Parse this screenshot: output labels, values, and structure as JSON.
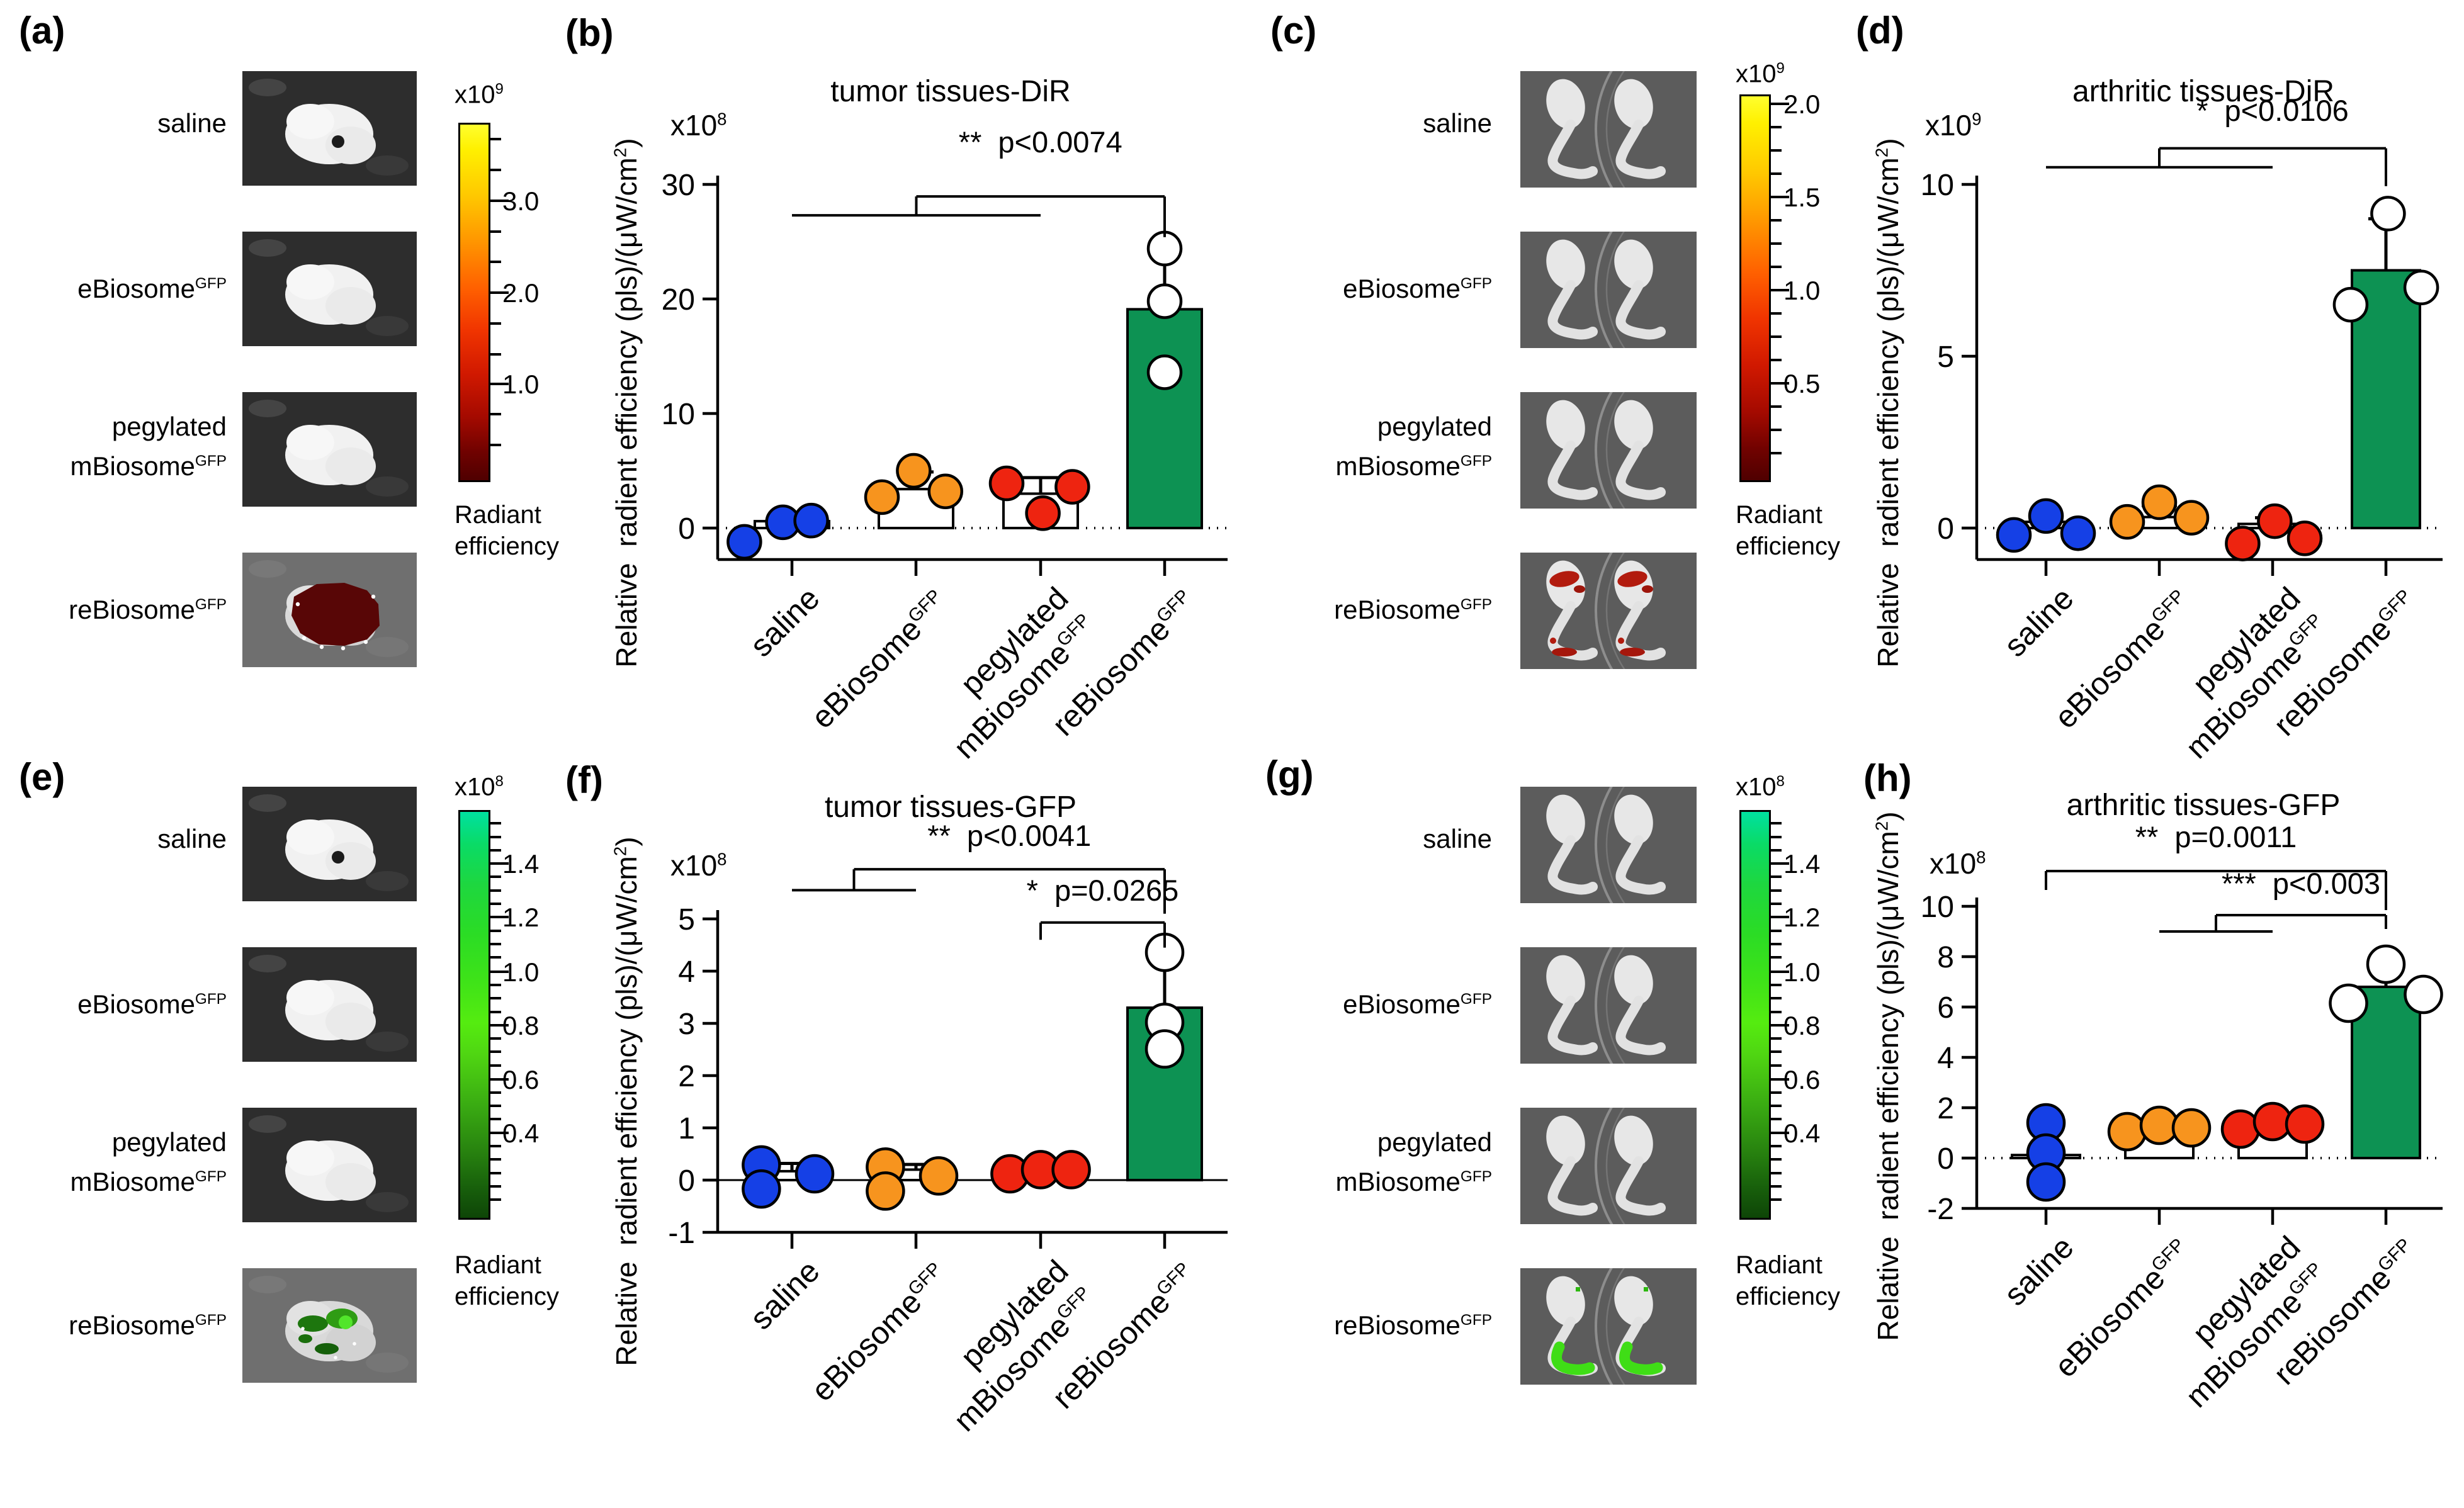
{
  "figure": {
    "background": "#ffffff"
  },
  "colors": {
    "blue": "#1540E6",
    "orange": "#F7941E",
    "red": "#EE2410",
    "green": "#0D9253",
    "white": "#FFFFFF",
    "black": "#000000"
  },
  "panels": {
    "a": {
      "letter": "(a)",
      "rows": [
        {
          "label": "saline",
          "image": "tumor-hole"
        },
        {
          "label": "eBiosome",
          "sup": "GFP",
          "image": "tumor-plain"
        },
        {
          "pre_line": "pegylated",
          "label": "mBiosome",
          "sup": "GFP",
          "image": "tumor-plain"
        },
        {
          "label": "reBiosome",
          "sup": "GFP",
          "image": "tumor-dir"
        }
      ],
      "colorbar": {
        "scale": {
          "pre": "x10",
          "sup": "9"
        },
        "palette": "fire",
        "ticks": [
          {
            "label": "3.0",
            "f": 0.219
          },
          {
            "label": "2.0",
            "f": 0.478
          },
          {
            "label": "1.0",
            "f": 0.734
          }
        ],
        "minors_per_gap": 2,
        "caption": [
          "Radiant",
          "efficiency"
        ]
      }
    },
    "c": {
      "letter": "(c)",
      "rows": [
        {
          "label": "saline",
          "image": "legs-plain"
        },
        {
          "label": "eBiosome",
          "sup": "GFP",
          "image": "legs-plain"
        },
        {
          "pre_line": "pegylated",
          "label": "mBiosome",
          "sup": "GFP",
          "image": "legs-plain"
        },
        {
          "label": "reBiosome",
          "sup": "GFP",
          "image": "legs-dir"
        }
      ],
      "colorbar": {
        "scale": {
          "pre": "x10",
          "sup": "9"
        },
        "palette": "fire",
        "ticks": [
          {
            "label": "2.0",
            "f": 0.025
          },
          {
            "label": "1.5",
            "f": 0.267
          },
          {
            "label": "1.0",
            "f": 0.51
          },
          {
            "label": "0.5",
            "f": 0.753
          }
        ],
        "minors_per_gap": 3,
        "caption": [
          "Radiant",
          "efficiency"
        ]
      }
    },
    "e": {
      "letter": "(e)",
      "rows": [
        {
          "label": "saline",
          "image": "tumor-hole"
        },
        {
          "label": "eBiosome",
          "sup": "GFP",
          "image": "tumor-plain"
        },
        {
          "pre_line": "pegylated",
          "label": "mBiosome",
          "sup": "GFP",
          "image": "tumor-plain"
        },
        {
          "label": "reBiosome",
          "sup": "GFP",
          "image": "tumor-gfp"
        }
      ],
      "colorbar": {
        "scale": {
          "pre": "x10",
          "sup": "8"
        },
        "palette": "gfp",
        "ticks": [
          {
            "label": "1.4",
            "f": 0.132
          },
          {
            "label": "1.2",
            "f": 0.264
          },
          {
            "label": "1.0",
            "f": 0.398
          },
          {
            "label": "0.8",
            "f": 0.53
          },
          {
            "label": "0.6",
            "f": 0.663
          },
          {
            "label": "0.4",
            "f": 0.795
          }
        ],
        "minors_per_gap": 3,
        "caption": [
          "Radiant",
          "efficiency"
        ]
      }
    },
    "g": {
      "letter": "(g)",
      "rows": [
        {
          "label": "saline",
          "image": "legs-plain"
        },
        {
          "label": "eBiosome",
          "sup": "GFP",
          "image": "legs-plain"
        },
        {
          "pre_line": "pegylated",
          "label": "mBiosome",
          "sup": "GFP",
          "image": "legs-plain"
        },
        {
          "label": "reBiosome",
          "sup": "GFP",
          "image": "legs-gfp"
        }
      ],
      "colorbar": {
        "scale": {
          "pre": "x10",
          "sup": "8"
        },
        "palette": "gfp",
        "ticks": [
          {
            "label": "1.4",
            "f": 0.132
          },
          {
            "label": "1.2",
            "f": 0.264
          },
          {
            "label": "1.0",
            "f": 0.398
          },
          {
            "label": "0.8",
            "f": 0.53
          },
          {
            "label": "0.6",
            "f": 0.663
          },
          {
            "label": "0.4",
            "f": 0.795
          }
        ],
        "minors_per_gap": 3,
        "caption": [
          "Radiant",
          "efficiency"
        ]
      }
    }
  },
  "chart_data": [
    {
      "id": "b",
      "panel_letter": "(b)",
      "type": "bar",
      "title": "tumor tissues-DiR",
      "scale_label": {
        "pre": "x10",
        "sup": "8"
      },
      "y_axis_label": {
        "pre": "Relative  radient efficiency (pls)/(μW/cm",
        "sup": "2",
        "post": ")"
      },
      "ylim": [
        -2.9,
        30
      ],
      "yticks": [
        0,
        10,
        20,
        30
      ],
      "zero_line": "dotted",
      "categories": [
        {
          "label": "saline"
        },
        {
          "label": "eBiosome",
          "sup": "GFP"
        },
        {
          "pre_line": "pegylated",
          "label": "mBiosome",
          "sup": "GFP"
        },
        {
          "label": "reBiosome",
          "sup": "GFP"
        }
      ],
      "groups": [
        {
          "name": "saline",
          "dot_color": "#1540E6",
          "bar_fill": "#FFFFFF",
          "bar": 0.6,
          "err": 1.25,
          "points": [
            {
              "v": -1.2,
              "dx": -0.42
            },
            {
              "v": 0.5,
              "dx": -0.08
            },
            {
              "v": 0.65,
              "dx": 0.17
            }
          ]
        },
        {
          "name": "eBiosomeGFP",
          "dot_color": "#F7941E",
          "bar_fill": "#FFFFFF",
          "bar": 3.4,
          "err": 4.9,
          "points": [
            {
              "v": 2.7,
              "dx": -0.3
            },
            {
              "v": 5.0,
              "dx": -0.02
            },
            {
              "v": 3.2,
              "dx": 0.26
            }
          ]
        },
        {
          "name": "pegylated mBiosomeGFP",
          "dot_color": "#EE2410",
          "bar_fill": "#FFFFFF",
          "bar": 3.0,
          "err": 4.4,
          "points": [
            {
              "v": 3.9,
              "dx": -0.3
            },
            {
              "v": 1.3,
              "dx": 0.02
            },
            {
              "v": 3.6,
              "dx": 0.28
            }
          ]
        },
        {
          "name": "reBiosomeGFP",
          "dot_color": "#FFFFFF",
          "bar_fill": "#0D9253",
          "bar": 19.1,
          "err": 24.4,
          "points": [
            {
              "v": 13.6,
              "dx": 0
            },
            {
              "v": 19.8,
              "dx": 0
            },
            {
              "v": 24.4,
              "dx": 0
            }
          ]
        }
      ],
      "comparisons": [
        {
          "type": "nested",
          "stars": "**",
          "p": "p<0.0074",
          "base_from": 0,
          "base_to": 2,
          "base_y": 27.3,
          "top_y": 28.95,
          "target": 3,
          "target_drop": 25.4,
          "text_y": 32.8
        }
      ]
    },
    {
      "id": "d",
      "panel_letter": "(d)",
      "type": "bar",
      "title": "arthritic tissues-DiR",
      "scale_label": {
        "pre": "x10",
        "sup": "9"
      },
      "y_axis_label": {
        "pre": "Relative  radient efficiency (pls)/(μW/cm",
        "sup": "2",
        "post": ")"
      },
      "ylim": [
        -0.9,
        10
      ],
      "yticks": [
        0,
        5,
        10
      ],
      "zero_line": "dotted",
      "categories": [
        {
          "label": "saline"
        },
        {
          "label": "eBiosome",
          "sup": "GFP"
        },
        {
          "pre_line": "pegylated",
          "label": "mBiosome",
          "sup": "GFP"
        },
        {
          "label": "reBiosome",
          "sup": "GFP"
        }
      ],
      "groups": [
        {
          "name": "saline",
          "dot_color": "#1540E6",
          "bar_fill": "#FFFFFF",
          "bar": 0.18,
          "err": 0.38,
          "points": [
            {
              "v": -0.2,
              "dx": -0.3
            },
            {
              "v": 0.35,
              "dx": 0
            },
            {
              "v": -0.15,
              "dx": 0.3
            }
          ]
        },
        {
          "name": "eBiosomeGFP",
          "dot_color": "#F7941E",
          "bar_fill": "#FFFFFF",
          "bar": 0.32,
          "err": 0.65,
          "points": [
            {
              "v": 0.18,
              "dx": -0.3
            },
            {
              "v": 0.75,
              "dx": 0
            },
            {
              "v": 0.3,
              "dx": 0.3
            }
          ]
        },
        {
          "name": "pegylated mBiosomeGFP",
          "dot_color": "#EE2410",
          "bar_fill": "#FFFFFF",
          "bar": 0.12,
          "err": 0.3,
          "points": [
            {
              "v": -0.45,
              "dx": -0.28
            },
            {
              "v": 0.2,
              "dx": 0.02
            },
            {
              "v": -0.3,
              "dx": 0.3
            }
          ]
        },
        {
          "name": "reBiosomeGFP",
          "dot_color": "#FFFFFF",
          "bar_fill": "#0D9253",
          "bar": 7.5,
          "err": 9.0,
          "points": [
            {
              "v": 6.5,
              "dx": -0.33
            },
            {
              "v": 9.15,
              "dx": 0.02
            },
            {
              "v": 7.0,
              "dx": 0.33
            }
          ]
        }
      ],
      "comparisons": [
        {
          "type": "nested",
          "stars": "*",
          "p": "p<0.0106",
          "base_from": 0,
          "base_to": 2,
          "base_y": 10.5,
          "top_y": 11.05,
          "target": 3,
          "target_drop": 9.95,
          "text_y": 11.85
        }
      ]
    },
    {
      "id": "f",
      "panel_letter": "(f)",
      "type": "bar",
      "title": "tumor tissues-GFP",
      "scale_label": {
        "pre": "x10",
        "sup": "8"
      },
      "y_axis_label": {
        "pre": "Relative  radient efficiency (pls)/(μW/cm",
        "sup": "2",
        "post": ")"
      },
      "ylim": [
        -1,
        5
      ],
      "yticks": [
        -1,
        0,
        1,
        2,
        3,
        4,
        5
      ],
      "zero_line": "solid",
      "categories": [
        {
          "label": "saline"
        },
        {
          "label": "eBiosome",
          "sup": "GFP"
        },
        {
          "pre_line": "pegylated",
          "label": "mBiosome",
          "sup": "GFP"
        },
        {
          "label": "reBiosome",
          "sup": "GFP"
        }
      ],
      "groups": [
        {
          "name": "saline",
          "dot_color": "#1540E6",
          "bar_fill": "#FFFFFF",
          "bar": 0.17,
          "err": 0.32,
          "points": [
            {
              "v": 0.29,
              "dx": -0.27
            },
            {
              "v": -0.17,
              "dx": -0.27
            },
            {
              "v": 0.12,
              "dx": 0.2
            }
          ]
        },
        {
          "name": "eBiosomeGFP",
          "dot_color": "#F7941E",
          "bar_fill": "#FFFFFF",
          "bar": 0.2,
          "err": 0.3,
          "points": [
            {
              "v": 0.25,
              "dx": -0.27
            },
            {
              "v": -0.21,
              "dx": -0.27
            },
            {
              "v": 0.08,
              "dx": 0.2
            }
          ]
        },
        {
          "name": "pegylated mBiosomeGFP",
          "dot_color": "#EE2410",
          "bar_fill": "#FFFFFF",
          "bar": 0.16,
          "err": 0.28,
          "points": [
            {
              "v": 0.12,
              "dx": -0.27
            },
            {
              "v": 0.2,
              "dx": 0
            },
            {
              "v": 0.2,
              "dx": 0.27
            }
          ]
        },
        {
          "name": "reBiosomeGFP",
          "dot_color": "#FFFFFF",
          "bar_fill": "#0D9253",
          "bar": 3.3,
          "err": 4.25,
          "points": [
            {
              "v": 4.36,
              "dx": 0
            },
            {
              "v": 3.02,
              "dx": 0
            },
            {
              "v": 2.51,
              "dx": 0
            }
          ]
        }
      ],
      "comparisons": [
        {
          "type": "nested",
          "stars": "**",
          "p": "p<0.0041",
          "base_from": 0,
          "base_to": 1,
          "base_y": 5.55,
          "top_y": 5.95,
          "target": 3,
          "target_drop": 5.1,
          "text_y": 6.4
        },
        {
          "type": "bracket",
          "stars": "*",
          "p": "p=0.0265",
          "from": 2,
          "from_drop": 4.6,
          "top_y": 4.93,
          "target": 3,
          "target_drop": 4.45,
          "text_y": 5.35
        }
      ]
    },
    {
      "id": "h",
      "panel_letter": "(h)",
      "type": "bar",
      "title": "arthritic tissues-GFP",
      "scale_label": {
        "pre": "x10",
        "sup": "8"
      },
      "y_axis_label": {
        "pre": "Relative  radient efficiency (pls)/(μW/cm",
        "sup": "2",
        "post": ")"
      },
      "ylim": [
        -2,
        10
      ],
      "yticks": [
        -2,
        0,
        2,
        4,
        6,
        8,
        10
      ],
      "zero_line": "dotted",
      "categories": [
        {
          "label": "saline"
        },
        {
          "label": "eBiosome",
          "sup": "GFP"
        },
        {
          "pre_line": "pegylated",
          "label": "mBiosome",
          "sup": "GFP"
        },
        {
          "label": "reBiosome",
          "sup": "GFP"
        }
      ],
      "groups": [
        {
          "name": "saline",
          "dot_color": "#1540E6",
          "bar_fill": "#FFFFFF",
          "bar": 0.12,
          "err": 1.35,
          "points": [
            {
              "v": 1.4,
              "dx": 0
            },
            {
              "v": 0.2,
              "dx": 0
            },
            {
              "v": -0.95,
              "dx": 0
            }
          ]
        },
        {
          "name": "eBiosomeGFP",
          "dot_color": "#F7941E",
          "bar_fill": "#FFFFFF",
          "bar": 1.0,
          "err": 1.3,
          "points": [
            {
              "v": 1.05,
              "dx": -0.3
            },
            {
              "v": 1.3,
              "dx": 0
            },
            {
              "v": 1.2,
              "dx": 0.3
            }
          ]
        },
        {
          "name": "pegylated mBiosomeGFP",
          "dot_color": "#EE2410",
          "bar_fill": "#FFFFFF",
          "bar": 1.2,
          "err": 1.45,
          "points": [
            {
              "v": 1.15,
              "dx": -0.3
            },
            {
              "v": 1.45,
              "dx": 0
            },
            {
              "v": 1.35,
              "dx": 0.3
            }
          ]
        },
        {
          "name": "reBiosomeGFP",
          "dot_color": "#FFFFFF",
          "bar_fill": "#0D9253",
          "bar": 6.8,
          "err": 7.6,
          "points": [
            {
              "v": 6.15,
              "dx": -0.35
            },
            {
              "v": 7.7,
              "dx": 0
            },
            {
              "v": 6.5,
              "dx": 0.35
            }
          ]
        }
      ],
      "comparisons": [
        {
          "type": "bracket",
          "stars": "**",
          "p": "p=0.0011",
          "from": 0,
          "from_drop": 10.65,
          "top_y": 11.4,
          "target": 3,
          "target_drop": 9.85,
          "text_y": 12.35
        },
        {
          "type": "nested",
          "stars": "***",
          "p": "p<0.003",
          "base_from": 1,
          "base_to": 2,
          "base_y": 9.0,
          "top_y": 9.65,
          "target": 3,
          "target_drop": 9.1,
          "text_y": 10.5
        }
      ]
    }
  ]
}
